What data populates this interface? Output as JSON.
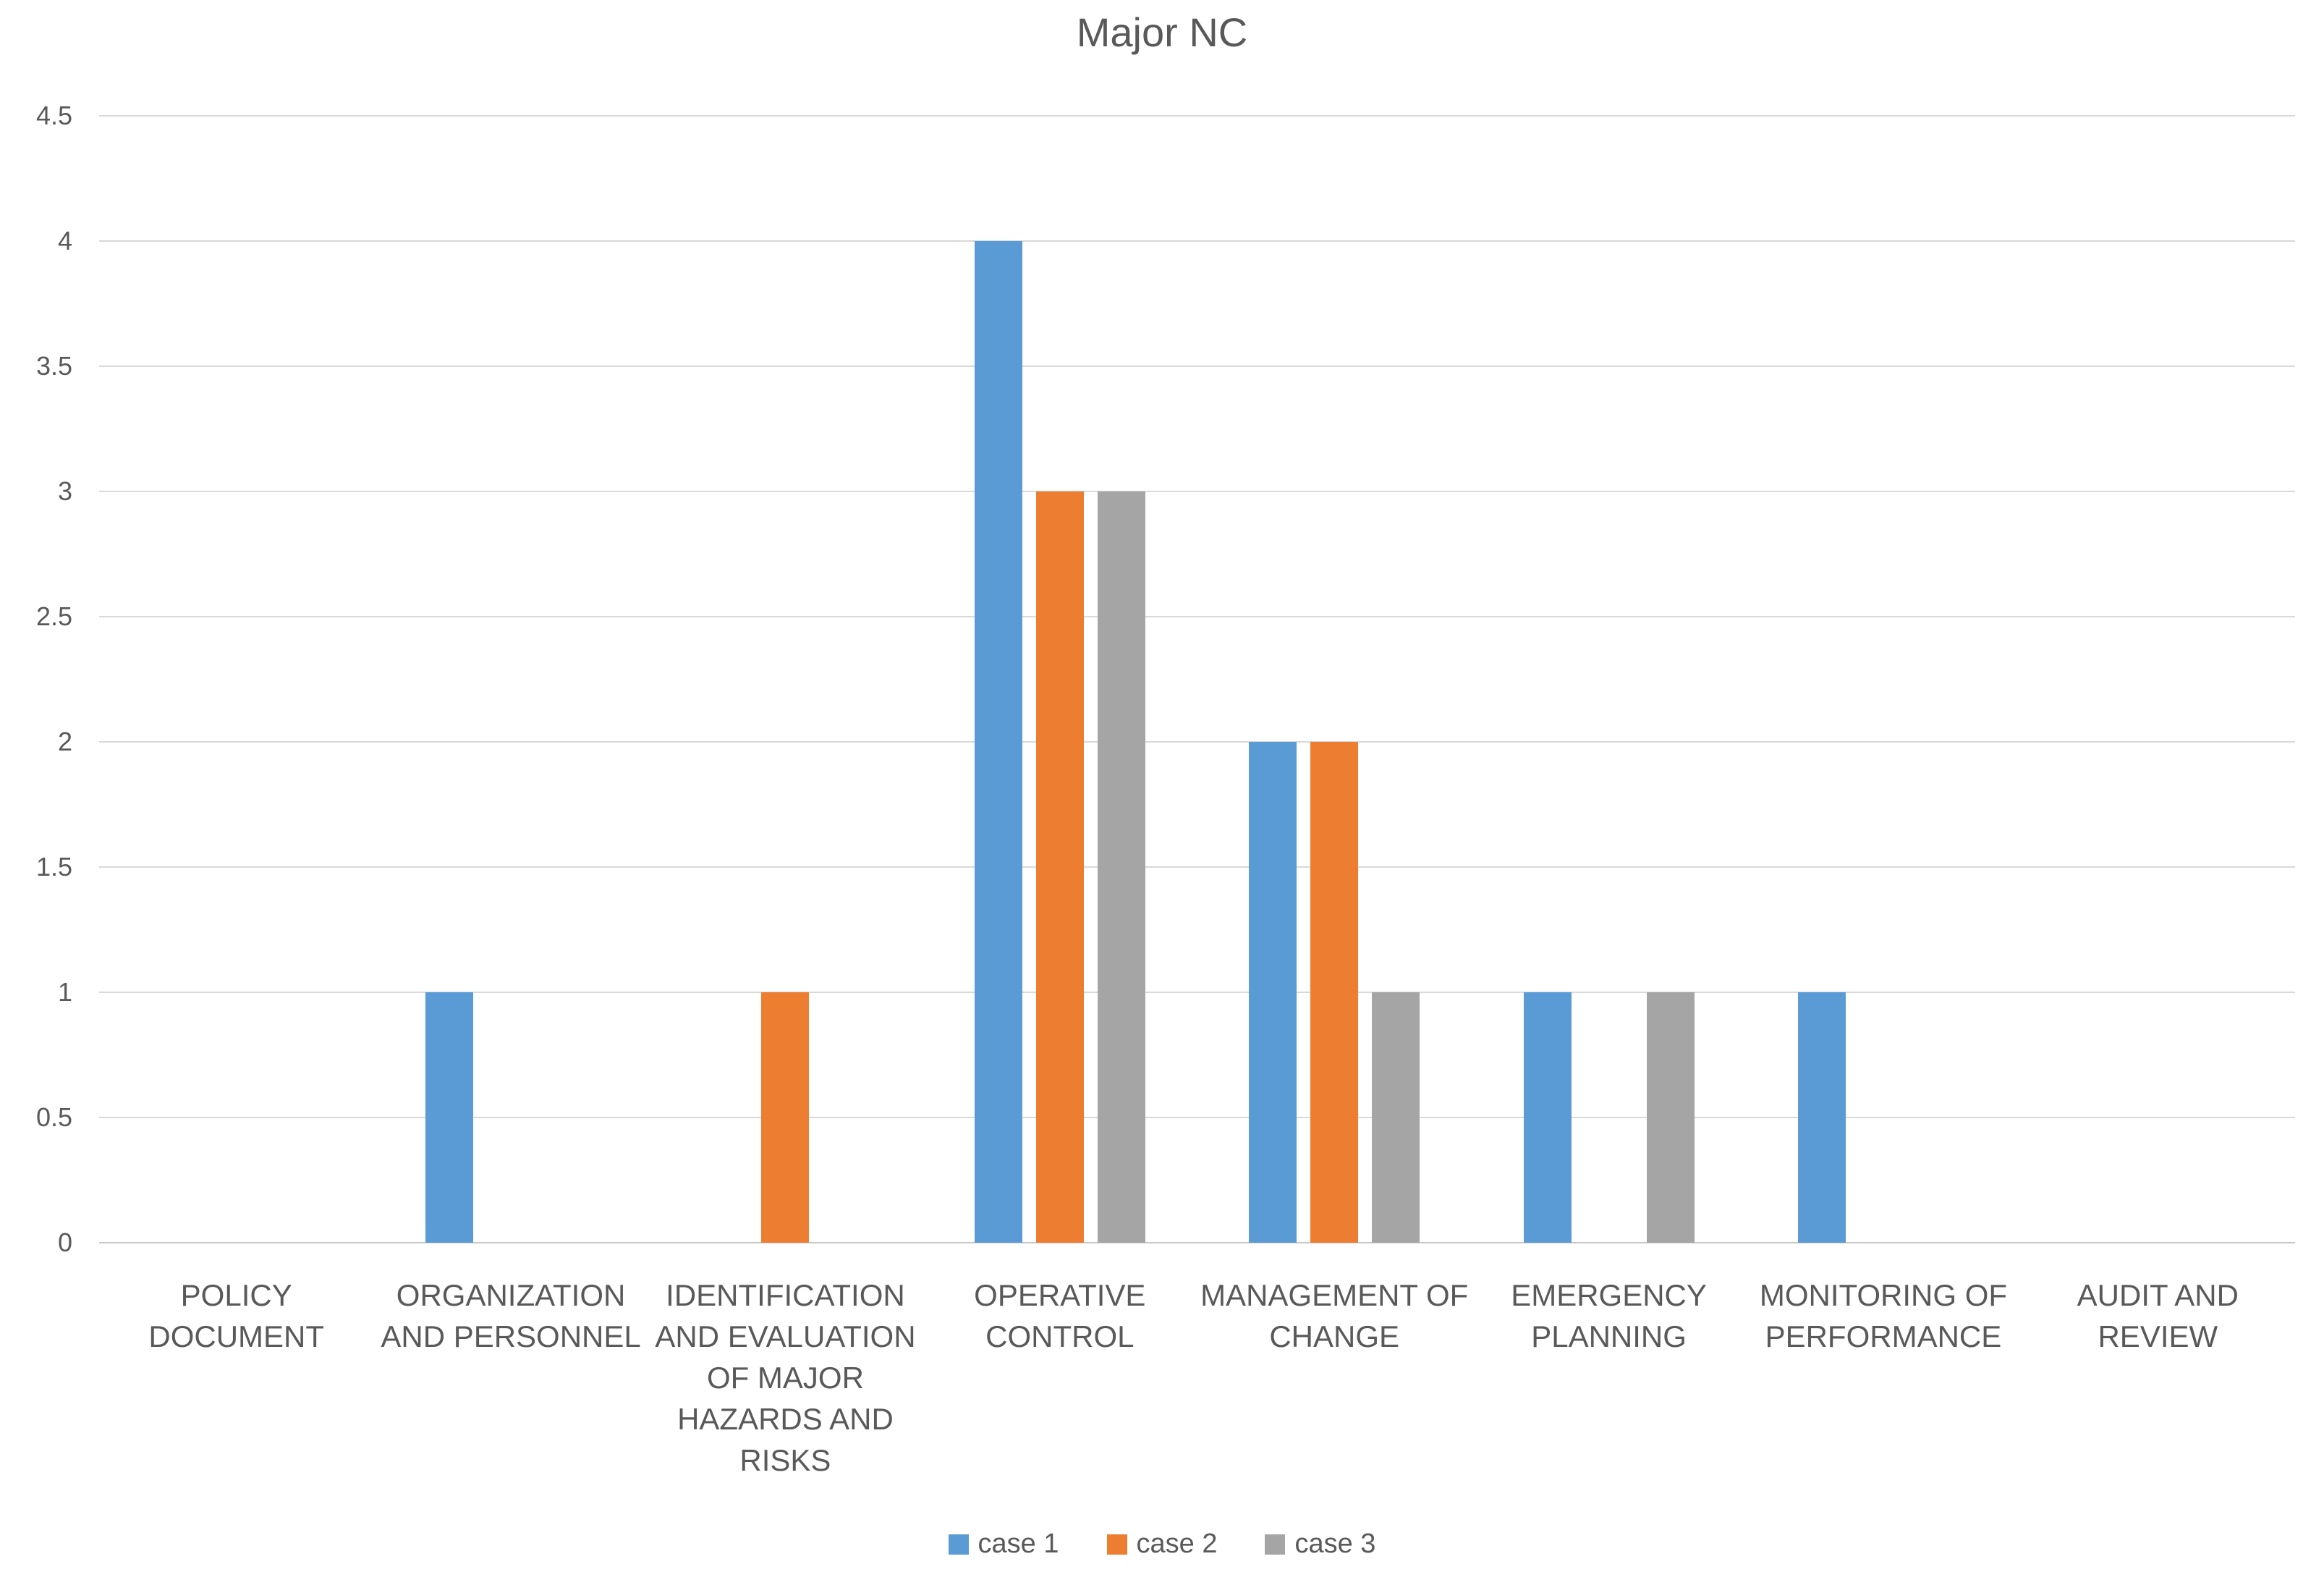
{
  "chart_data": {
    "type": "bar",
    "title": "Major NC",
    "categories": [
      "POLICY DOCUMENT",
      "ORGANIZATION AND PERSONNEL",
      "IDENTIFICATION AND EVALUATION OF MAJOR HAZARDS AND RISKS",
      "OPERATIVE CONTROL",
      "MANAGEMENT OF CHANGE",
      "EMERGENCY PLANNING",
      "MONITORING OF PERFORMANCE",
      "AUDIT AND REVIEW"
    ],
    "category_label_lines": [
      [
        "POLICY",
        "DOCUMENT"
      ],
      [
        "ORGANIZATION",
        "AND PERSONNEL"
      ],
      [
        "IDENTIFICATION",
        "AND EVALUATION",
        "OF MAJOR",
        "HAZARDS AND",
        "RISKS"
      ],
      [
        "OPERATIVE",
        "CONTROL"
      ],
      [
        "MANAGEMENT OF",
        "CHANGE"
      ],
      [
        "EMERGENCY",
        "PLANNING"
      ],
      [
        "MONITORING OF",
        "PERFORMANCE"
      ],
      [
        "AUDIT AND",
        "REVIEW"
      ]
    ],
    "series": [
      {
        "name": "case 1",
        "color": "#5B9BD5",
        "values": [
          0,
          1,
          0,
          4,
          2,
          1,
          1,
          0
        ]
      },
      {
        "name": "case 2",
        "color": "#ED7D31",
        "values": [
          0,
          0,
          1,
          3,
          2,
          0,
          0,
          0
        ]
      },
      {
        "name": "case 3",
        "color": "#A5A5A5",
        "values": [
          0,
          0,
          0,
          3,
          1,
          1,
          0,
          0
        ]
      }
    ],
    "xlabel": "",
    "ylabel": "",
    "ylim": [
      0,
      4.5
    ],
    "y_tick_step": 0.5,
    "y_tick_labels_top_to_bottom": [
      "4.5",
      "4",
      "3.5",
      "3",
      "2.5",
      "2",
      "1.5",
      "1",
      "0.5",
      "0"
    ],
    "grid": "horizontal",
    "legend_position": "bottom",
    "colors": {
      "gridline": "#D9D9D9",
      "axis_line": "#C6C6C6",
      "text": "#595959",
      "background": "#FFFFFF"
    }
  }
}
